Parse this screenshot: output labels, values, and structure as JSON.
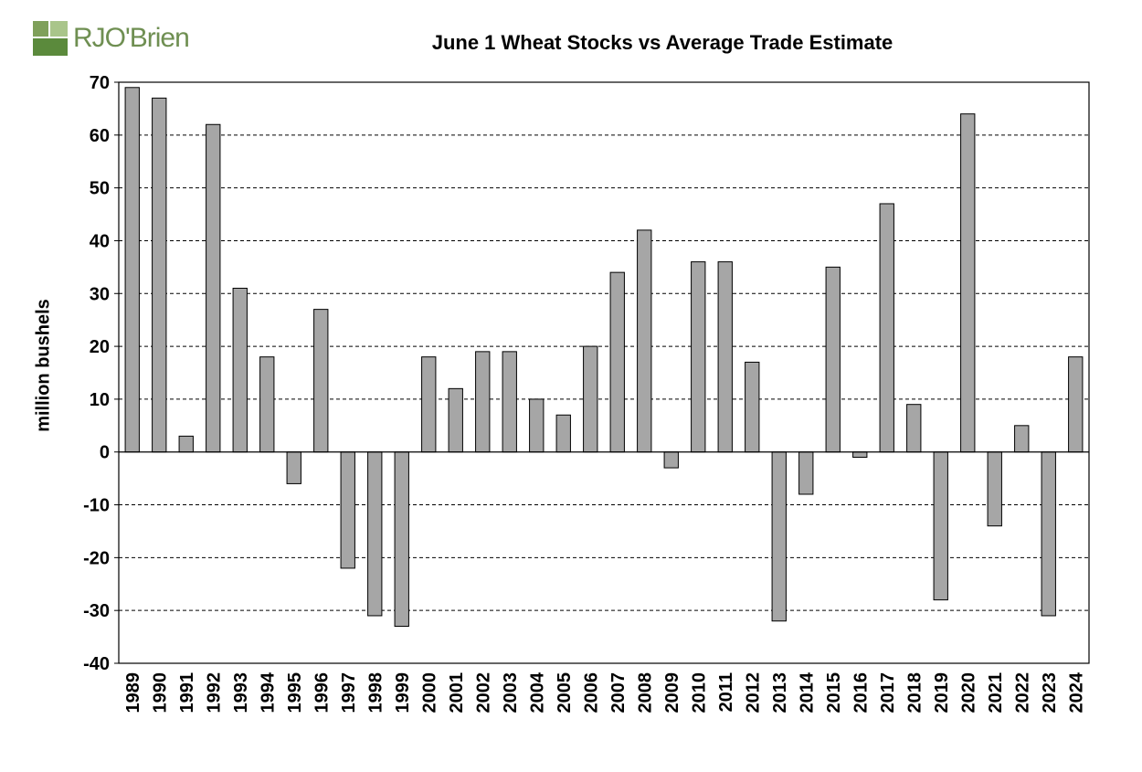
{
  "logo": {
    "text": "RJO'Brien"
  },
  "chart_data": {
    "type": "bar",
    "title": "June 1 Wheat Stocks vs Average Trade Estimate",
    "ylabel": "million bushels",
    "xlabel": "",
    "ylim": [
      -40,
      70
    ],
    "yticks": [
      -40,
      -30,
      -20,
      -10,
      0,
      10,
      20,
      30,
      40,
      50,
      60,
      70
    ],
    "grid": "horizontal dashed",
    "categories": [
      "1989",
      "1990",
      "1991",
      "1992",
      "1993",
      "1994",
      "1995",
      "1996",
      "1997",
      "1998",
      "1999",
      "2000",
      "2001",
      "2002",
      "2003",
      "2004",
      "2005",
      "2006",
      "2007",
      "2008",
      "2009",
      "2010",
      "2011",
      "2012",
      "2013",
      "2014",
      "2015",
      "2016",
      "2017",
      "2018",
      "2019",
      "2020",
      "2021",
      "2022",
      "2023",
      "2024"
    ],
    "values": [
      69,
      67,
      3,
      62,
      31,
      18,
      -6,
      27,
      -22,
      -31,
      -33,
      18,
      12,
      19,
      19,
      10,
      7,
      20,
      34,
      42,
      -3,
      36,
      36,
      17,
      -32,
      -8,
      35,
      -1,
      47,
      9,
      -28,
      64,
      -14,
      5,
      -31,
      18
    ],
    "bar_color": "#a6a6a6",
    "bar_stroke": "#000000"
  }
}
